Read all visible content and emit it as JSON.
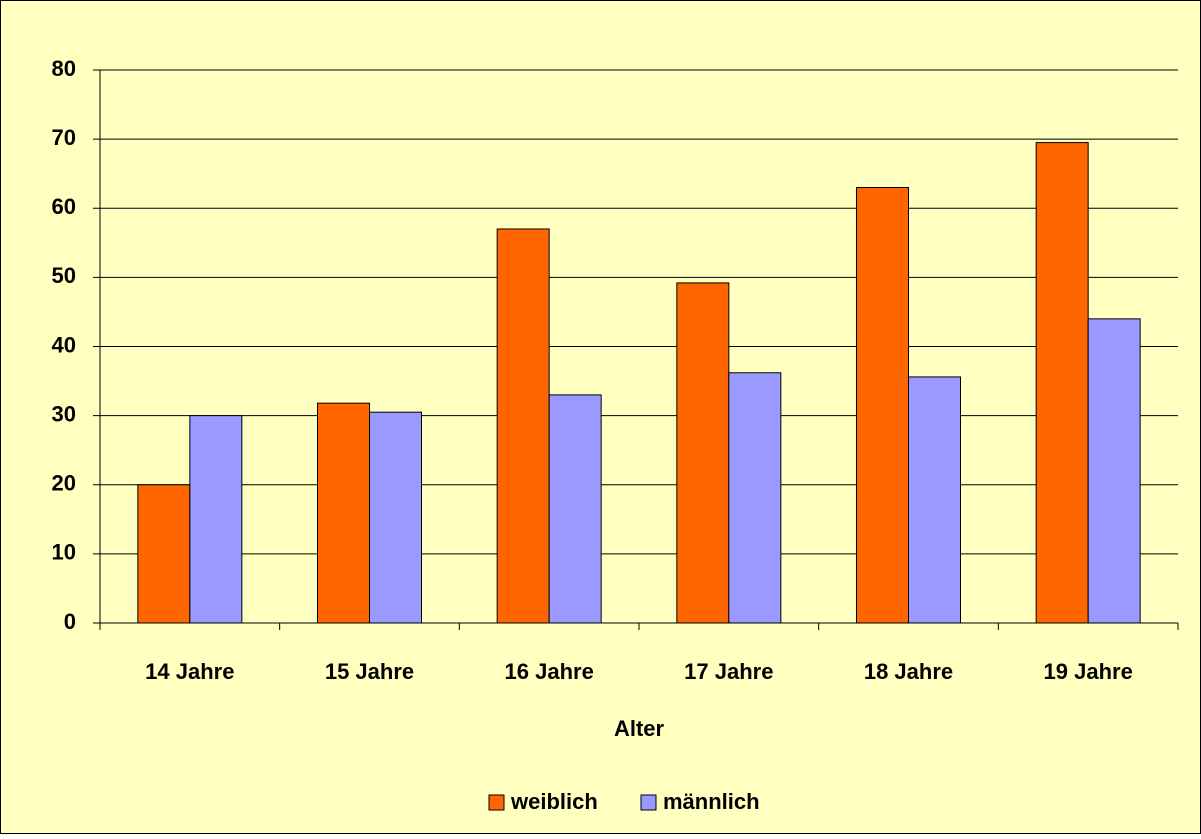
{
  "chart_data": {
    "type": "bar",
    "categories": [
      "14 Jahre",
      "15 Jahre",
      "16 Jahre",
      "17 Jahre",
      "18 Jahre",
      "19 Jahre"
    ],
    "series": [
      {
        "name": "weiblich",
        "color": "#ff6600",
        "values": [
          20,
          31.8,
          57,
          49.2,
          63,
          69.5
        ]
      },
      {
        "name": "männlich",
        "color": "#9999ff",
        "values": [
          30,
          30.5,
          33,
          36.2,
          35.6,
          44
        ]
      }
    ],
    "x_label": "Alter",
    "ylim": [
      0,
      80
    ],
    "yticks": [
      0,
      10,
      20,
      30,
      40,
      50,
      60,
      70,
      80
    ],
    "grid": true,
    "legend": "bottom"
  }
}
